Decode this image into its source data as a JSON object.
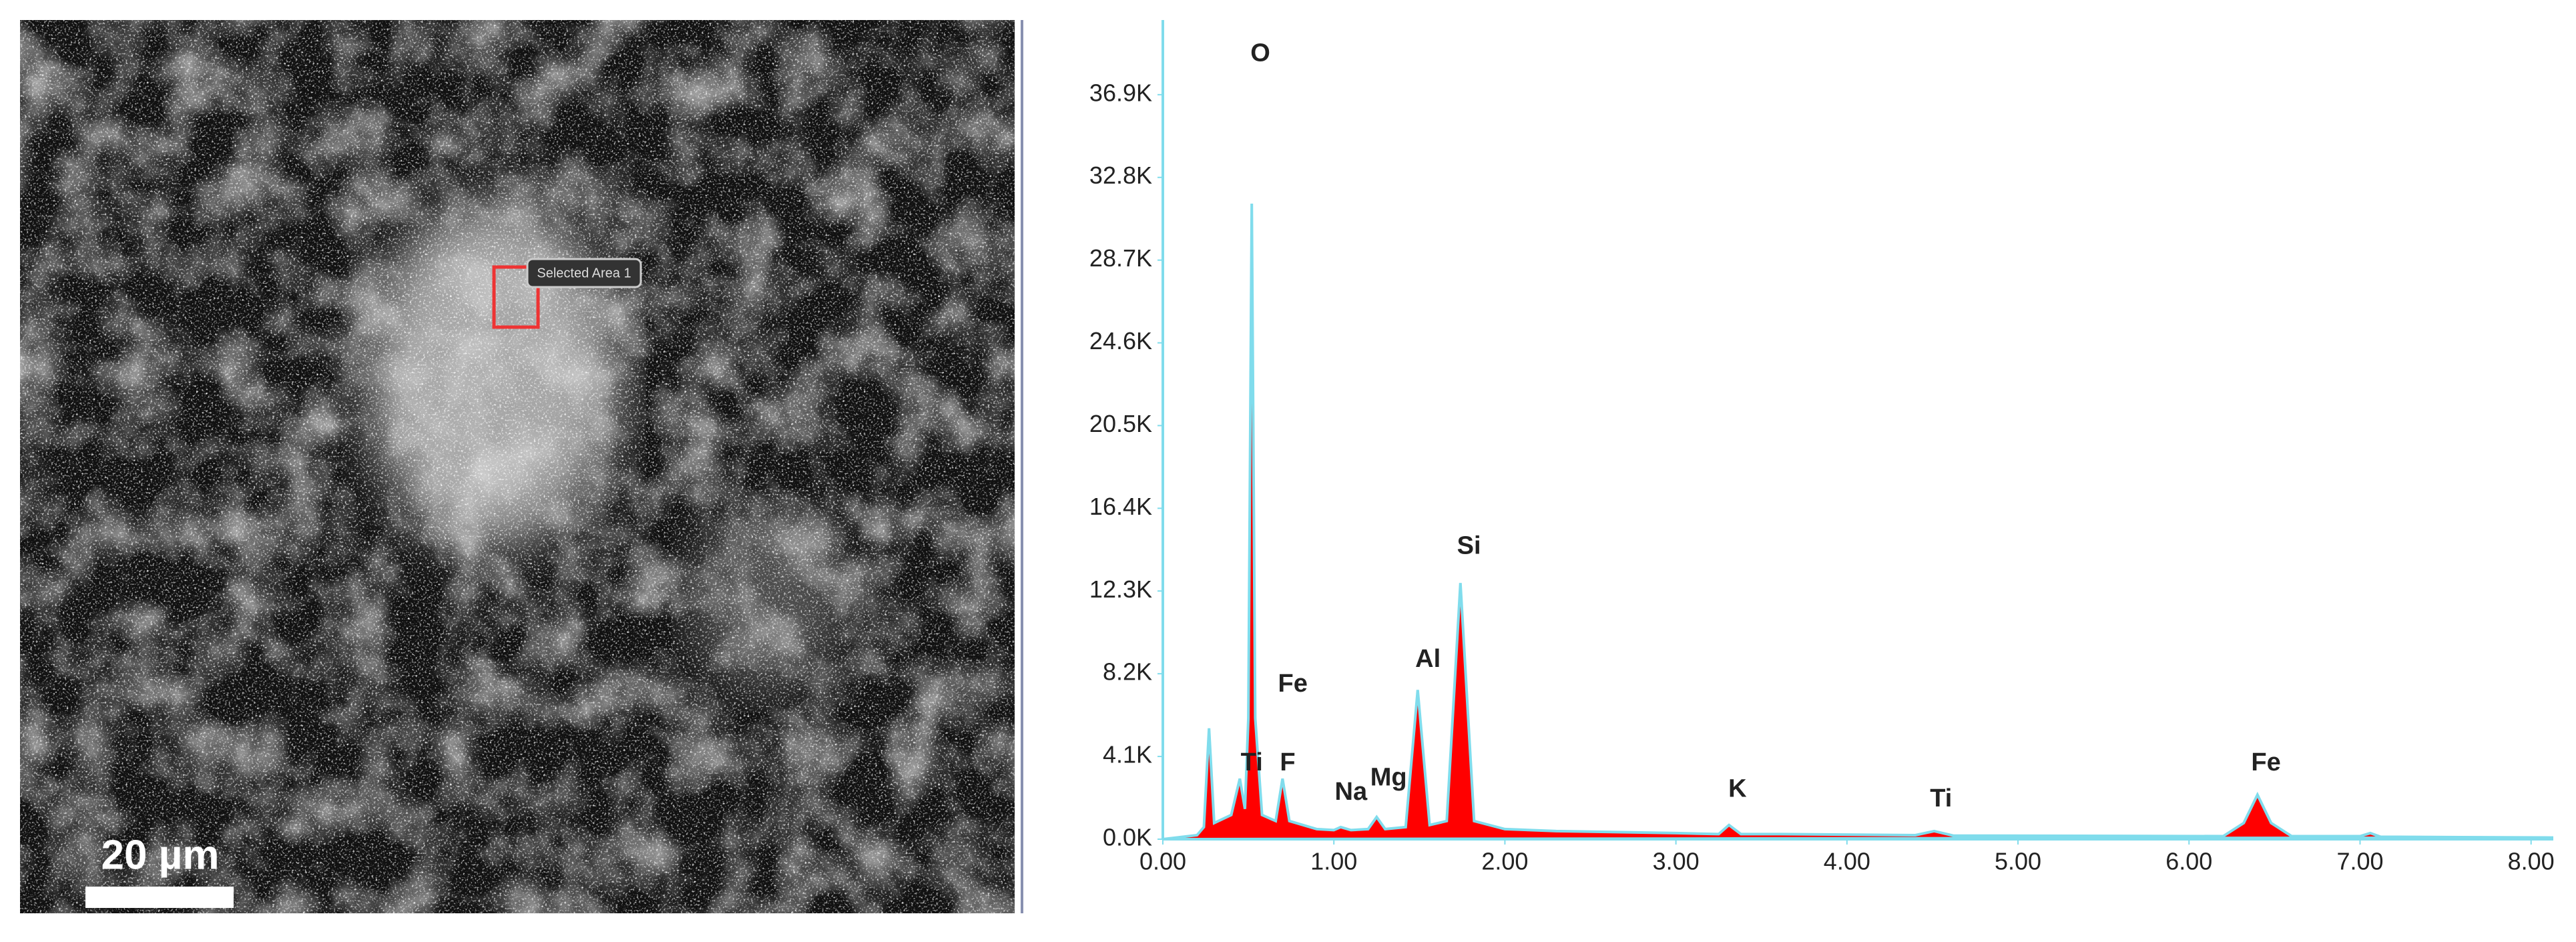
{
  "image": {
    "selection_label": "Selected Area 1",
    "scale_bar": "20 µm"
  },
  "chart_data": {
    "type": "line",
    "xlim": [
      0,
      8.13
    ],
    "ylim": [
      0,
      40600
    ],
    "xticks": [
      {
        "value": 0,
        "label": "0.00"
      },
      {
        "value": 1,
        "label": "1.00"
      },
      {
        "value": 2,
        "label": "2.00"
      },
      {
        "value": 3,
        "label": "3.00"
      },
      {
        "value": 4,
        "label": "4.00"
      },
      {
        "value": 5,
        "label": "5.00"
      },
      {
        "value": 6,
        "label": "6.00"
      },
      {
        "value": 7,
        "label": "7.00"
      },
      {
        "value": 8,
        "label": "8.00"
      }
    ],
    "yticks": [
      {
        "value": 0,
        "label": "0.0K"
      },
      {
        "value": 4100,
        "label": "4.1K"
      },
      {
        "value": 8200,
        "label": "8.2K"
      },
      {
        "value": 12300,
        "label": "12.3K"
      },
      {
        "value": 16400,
        "label": "16.4K"
      },
      {
        "value": 20500,
        "label": "20.5K"
      },
      {
        "value": 24600,
        "label": "24.6K"
      },
      {
        "value": 28700,
        "label": "28.7K"
      },
      {
        "value": 32800,
        "label": "32.8K"
      },
      {
        "value": 36900,
        "label": "36.9K"
      }
    ],
    "grid": false,
    "x": [
      0.0,
      0.2,
      0.24,
      0.27,
      0.3,
      0.4,
      0.45,
      0.48,
      0.5,
      0.52,
      0.54,
      0.58,
      0.66,
      0.7,
      0.74,
      0.9,
      1.0,
      1.04,
      1.1,
      1.2,
      1.25,
      1.3,
      1.42,
      1.49,
      1.56,
      1.66,
      1.74,
      1.82,
      2.0,
      2.3,
      3.0,
      3.25,
      3.31,
      3.38,
      3.6,
      4.4,
      4.51,
      4.62,
      6.2,
      6.32,
      6.4,
      6.48,
      6.6,
      7.0,
      7.06,
      7.12,
      8.13
    ],
    "series": [
      {
        "color": "#ff0000",
        "line_color": "#80dcec",
        "values": [
          0,
          200,
          600,
          5500,
          800,
          1200,
          3000,
          1500,
          6000,
          31500,
          6000,
          1200,
          900,
          3000,
          900,
          500,
          450,
          600,
          450,
          500,
          1100,
          500,
          600,
          7400,
          700,
          900,
          12700,
          900,
          500,
          400,
          300,
          250,
          700,
          250,
          250,
          200,
          400,
          180,
          150,
          800,
          2200,
          800,
          150,
          150,
          300,
          120,
          80
        ]
      }
    ],
    "annotations": [
      {
        "text": "O",
        "x": 0.57,
        "y": 38900
      },
      {
        "text": "Fe",
        "x": 0.76,
        "y": 7650
      },
      {
        "text": "Ti",
        "x": 0.52,
        "y": 3740
      },
      {
        "text": "F",
        "x": 0.73,
        "y": 3740
      },
      {
        "text": "Na",
        "x": 1.1,
        "y": 2280
      },
      {
        "text": "Mg",
        "x": 1.32,
        "y": 3000
      },
      {
        "text": "Al",
        "x": 1.55,
        "y": 8870
      },
      {
        "text": "Si",
        "x": 1.79,
        "y": 14480
      },
      {
        "text": "K",
        "x": 3.36,
        "y": 2440
      },
      {
        "text": "Ti",
        "x": 4.55,
        "y": 1950
      },
      {
        "text": "Fe",
        "x": 6.45,
        "y": 3740
      }
    ]
  }
}
